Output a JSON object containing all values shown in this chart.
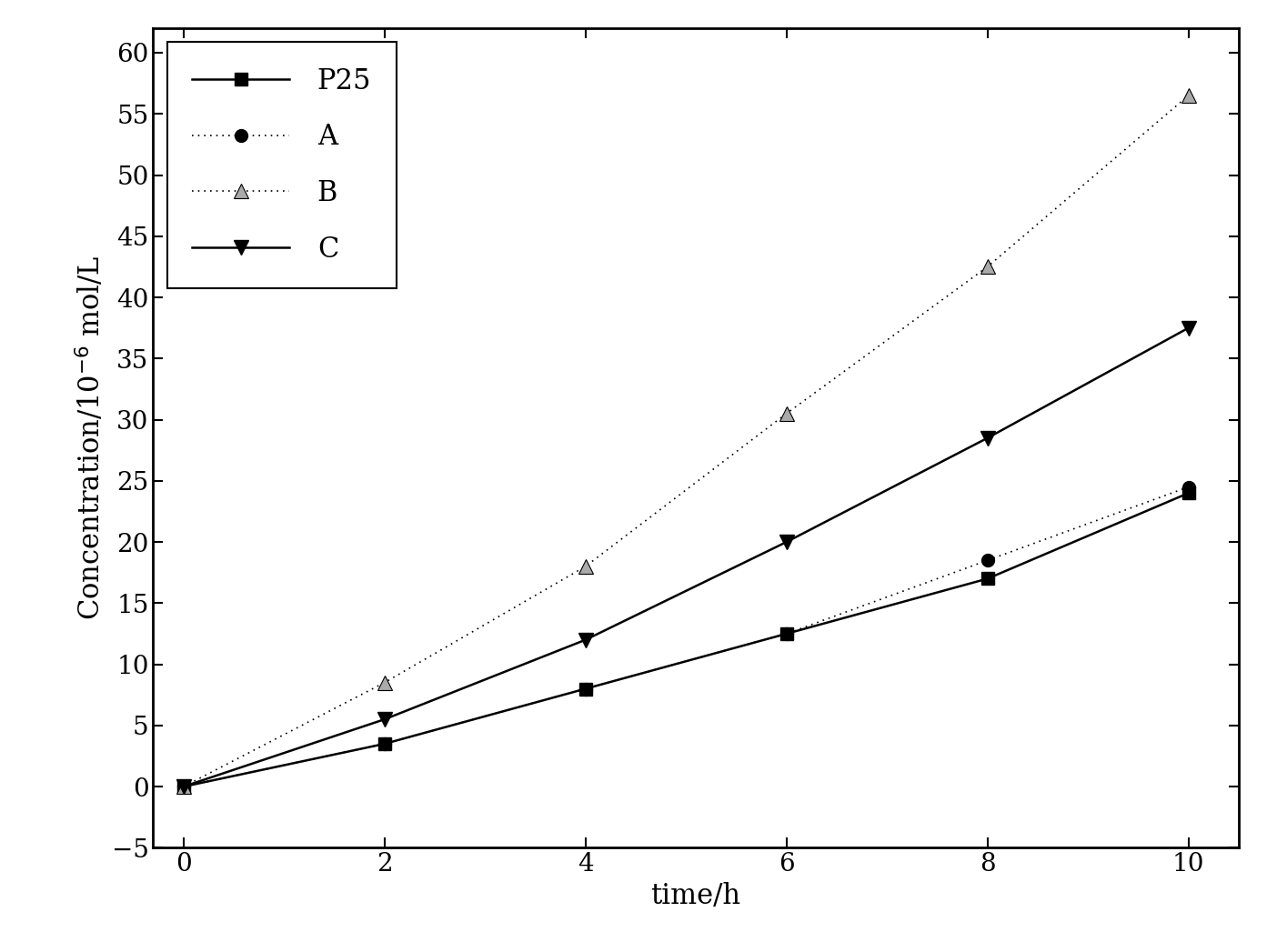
{
  "x": [
    0,
    2,
    4,
    6,
    8,
    10
  ],
  "P25": [
    0,
    3.5,
    8.0,
    12.5,
    17.0,
    24.0
  ],
  "A": [
    0,
    3.5,
    8.0,
    12.5,
    18.5,
    24.5
  ],
  "B": [
    0,
    8.5,
    18.0,
    30.5,
    42.5,
    56.5
  ],
  "C": [
    0,
    5.5,
    12.0,
    20.0,
    28.5,
    37.5
  ],
  "ylabel": "Concentration/10$^{-6}$ mol/L",
  "xlabel": "time/h",
  "ylim": [
    -5,
    62
  ],
  "xlim": [
    -0.3,
    10.5
  ],
  "yticks": [
    -5,
    0,
    5,
    10,
    15,
    20,
    25,
    30,
    35,
    40,
    45,
    50,
    55,
    60
  ],
  "xticks": [
    0,
    2,
    4,
    6,
    8,
    10
  ],
  "background": "#ffffff",
  "line_color": "#000000"
}
